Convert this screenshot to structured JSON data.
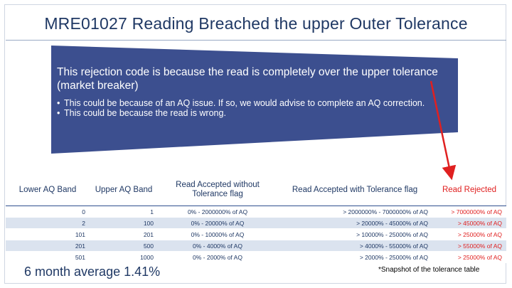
{
  "slide": {
    "title": "MRE01027 Reading Breached the upper Outer Tolerance",
    "callout": {
      "heading": "This rejection code is because the read is completely over the upper tolerance (market breaker)",
      "bullets": [
        "This could be because of an AQ issue. If so, we would advise to complete an AQ correction.",
        "This could be because the read is wrong."
      ]
    },
    "table": {
      "headers": [
        "Lower AQ Band",
        "Upper AQ Band",
        "Read Accepted without Tolerance flag",
        "Read Accepted with Tolerance flag",
        "Read Rejected"
      ],
      "rows": [
        [
          "0",
          "1",
          "0% - 2000000% of AQ",
          "> 2000000% - 7000000% of AQ",
          "> 7000000% of AQ"
        ],
        [
          "2",
          "100",
          "0% - 20000% of AQ",
          "> 20000% - 45000% of AQ",
          "> 45000% of AQ"
        ],
        [
          "101",
          "201",
          "0% - 10000% of AQ",
          "> 10000% - 25000% of AQ",
          "> 25000% of AQ"
        ],
        [
          "201",
          "500",
          "0% - 4000% of AQ",
          "> 4000% - 55000% of AQ",
          "> 55000% of AQ"
        ],
        [
          "501",
          "1000",
          "0% - 2000% of AQ",
          "> 2000% - 25000% of AQ",
          "> 25000% of AQ"
        ]
      ]
    },
    "average_label": "6 month average 1.41%",
    "snapshot_note": "*Snapshot of the tolerance table"
  },
  "colors": {
    "callout_fill": "#3c4f8f",
    "title_text": "#1f3864",
    "accent_red": "#e02020",
    "row_band": "#dbe3ef"
  }
}
